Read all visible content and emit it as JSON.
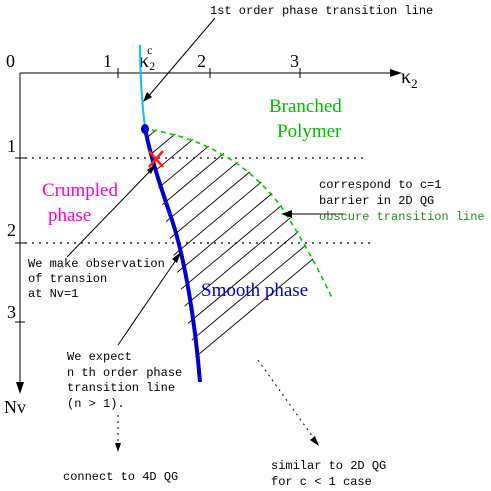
{
  "colors": {
    "axis": "#000000",
    "dotted": "#000000",
    "first_order_line": "#00bfff",
    "boundary_line": "#0000cc",
    "obscure_line": "#00cc00",
    "crumpled": "#ff00cc",
    "branched": "#00bb00",
    "cross": "#ff2020",
    "hatch": "#000000"
  },
  "axes": {
    "x_label": "κ",
    "x_label_sub": "2",
    "y_label": "Nv",
    "origin_label": "0",
    "x_ticks": [
      "1",
      "2",
      "3"
    ],
    "y_ticks": [
      "1",
      "2",
      "3"
    ],
    "critical_label": "κ",
    "critical_sub": "2",
    "critical_sup": "c"
  },
  "regions": {
    "branched_line1": "Branched",
    "branched_line2": "Polymer",
    "crumpled_line1": "Crumpled",
    "crumpled_line2": "phase",
    "smooth": "Smooth phase"
  },
  "annotations": {
    "first_order": "1st order phase transition line",
    "correspond_line1": "correspond to c=1",
    "correspond_line2": "barrier in  2D QG",
    "obscure": "obscure transition line",
    "observation_lines": [
      "We make observation",
      "of transion",
      "at Nv=1"
    ],
    "expect_lines": [
      "We expect",
      "n th order phase",
      "transition line",
      "(n > 1)."
    ],
    "connect": "connect to 4D QG",
    "similar_line1": "similar to 2D QG",
    "similar_line2": "for c < 1 case"
  }
}
